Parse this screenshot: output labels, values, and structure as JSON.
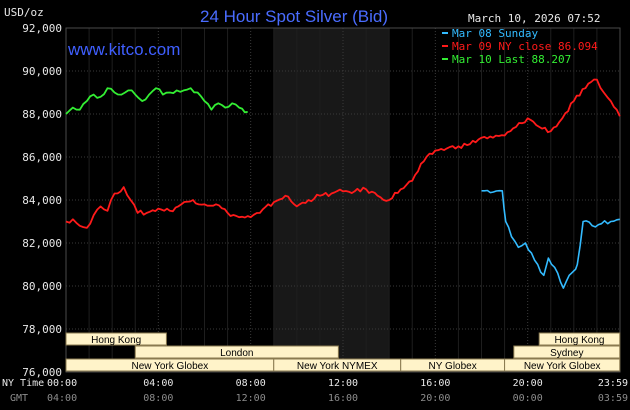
{
  "chart_data": {
    "type": "line",
    "title": "24 Hour Spot Silver (Bid)",
    "source": "www.kitco.com",
    "timestamp": "March 10, 2026 07:52",
    "ylabel": "USD/oz",
    "ylim": [
      76000,
      92000
    ],
    "y_ticks": [
      "92,000",
      "90,000",
      "88,000",
      "86,000",
      "84,000",
      "82,000",
      "80,000",
      "78,000",
      "76,000"
    ],
    "x_axis_label_primary": "NY Time",
    "x_axis_label_secondary": "GMT",
    "x_ticks_ny": [
      "00:00",
      "04:00",
      "08:00",
      "12:00",
      "16:00",
      "20:00",
      "23:59"
    ],
    "x_ticks_gmt": [
      "04:00",
      "08:00",
      "12:00",
      "16:00",
      "20:00",
      "00:00",
      "03:59"
    ],
    "grid": true,
    "shaded_region_hours": [
      9,
      14
    ],
    "legend": [
      {
        "label": "Mar 08 Sunday",
        "color": "#33bbff"
      },
      {
        "label": "Mar 09 NY close 86.094",
        "color": "#ff1a1a"
      },
      {
        "label": "Mar 10 Last 88.207",
        "color": "#33ee33"
      }
    ],
    "series": [
      {
        "name": "Mar 08 Sunday",
        "color": "#33bbff",
        "x": [
          18.0,
          18.9,
          19.05,
          19.3,
          19.6,
          19.9,
          20.3,
          20.7,
          20.9,
          21.3,
          21.55,
          21.8,
          22.0,
          22.15,
          22.4,
          22.8,
          23.2,
          23.6,
          23.99
        ],
        "y": [
          84.43,
          84.43,
          83.0,
          82.3,
          81.8,
          82.0,
          81.2,
          80.5,
          81.3,
          80.6,
          79.9,
          80.5,
          80.7,
          81.0,
          83.0,
          82.8,
          82.9,
          83.0,
          83.1
        ]
      },
      {
        "name": "Mar 09 NY close 86.094",
        "color": "#ff1a1a",
        "x": [
          0,
          0.3,
          0.6,
          0.9,
          1.2,
          1.5,
          1.8,
          2.1,
          2.5,
          2.8,
          3.1,
          3.5,
          4.0,
          4.5,
          5.0,
          5.5,
          6.0,
          6.5,
          7.0,
          7.5,
          8.0,
          8.4,
          9.0,
          9.5,
          10.0,
          10.5,
          11.0,
          11.5,
          12.0,
          12.5,
          13.0,
          13.5,
          14.0,
          14.5,
          15.0,
          15.5,
          16.0,
          16.5,
          17.0,
          17.5,
          18.0,
          18.5,
          19.0,
          19.5,
          20.0,
          20.5,
          21.0,
          21.5,
          22.0,
          22.5,
          23.0,
          23.3,
          23.6,
          23.99
        ],
        "y": [
          83.0,
          83.1,
          82.8,
          82.7,
          83.3,
          83.7,
          83.5,
          84.3,
          84.6,
          84.0,
          83.4,
          83.4,
          83.6,
          83.5,
          83.8,
          84.0,
          83.8,
          83.8,
          83.4,
          83.2,
          83.2,
          83.4,
          83.9,
          84.2,
          83.7,
          84.0,
          84.2,
          84.3,
          84.4,
          84.4,
          84.5,
          84.2,
          84.0,
          84.5,
          84.9,
          85.8,
          86.3,
          86.4,
          86.5,
          86.6,
          86.9,
          86.9,
          87.0,
          87.4,
          87.8,
          87.4,
          87.2,
          87.8,
          88.6,
          89.2,
          89.6,
          89.0,
          88.6,
          87.9
        ]
      },
      {
        "name": "Mar 10 Last 88.207",
        "color": "#33ee33",
        "x": [
          0,
          0.3,
          0.6,
          0.9,
          1.2,
          1.5,
          1.8,
          2.1,
          2.4,
          2.7,
          3.0,
          3.3,
          3.6,
          3.9,
          4.2,
          4.5,
          4.8,
          5.1,
          5.4,
          5.7,
          6.0,
          6.3,
          6.6,
          6.9,
          7.2,
          7.5,
          7.87
        ],
        "y": [
          88.0,
          88.3,
          88.2,
          88.6,
          88.9,
          88.8,
          89.2,
          89.0,
          88.9,
          89.1,
          88.9,
          88.6,
          88.9,
          89.2,
          88.9,
          89.0,
          89.1,
          89.1,
          89.2,
          89.0,
          88.6,
          88.2,
          88.5,
          88.3,
          88.5,
          88.3,
          88.1
        ]
      }
    ],
    "markets": [
      {
        "name": "Hong Kong",
        "row": 1,
        "start": 0,
        "end": 4.35
      },
      {
        "name": "Hong Kong",
        "row": 1,
        "start": 20.5,
        "end": 23.99
      },
      {
        "name": "London",
        "row": 2,
        "start": 3.0,
        "end": 11.8
      },
      {
        "name": "Sydney",
        "row": 2,
        "start": 19.4,
        "end": 23.99
      },
      {
        "name": "New York Globex",
        "row": 3,
        "start": 0,
        "end": 9.0
      },
      {
        "name": "New York NYMEX",
        "row": 3,
        "start": 9.0,
        "end": 14.5
      },
      {
        "name": "NY Globex",
        "row": 3,
        "start": 14.5,
        "end": 19.0
      },
      {
        "name": "New York Globex",
        "row": 3,
        "start": 19.0,
        "end": 23.99
      }
    ]
  }
}
